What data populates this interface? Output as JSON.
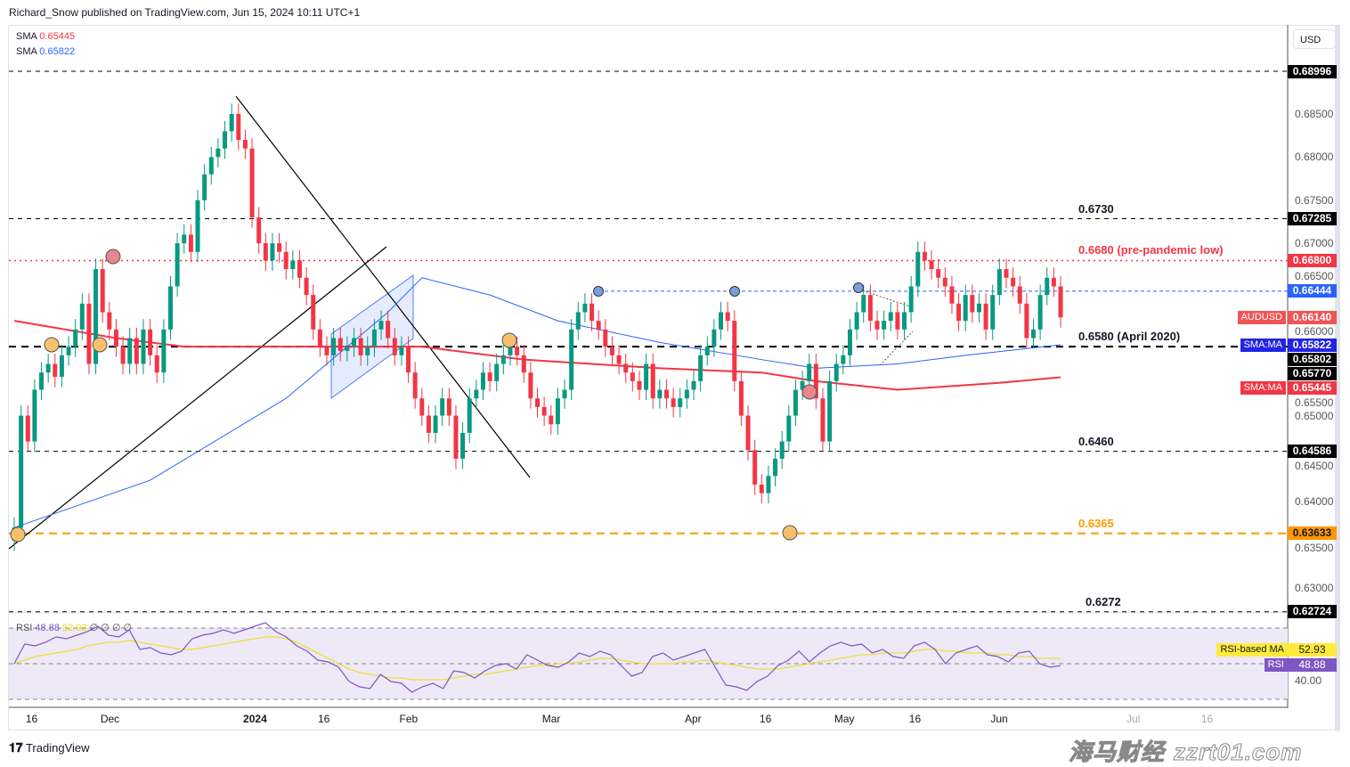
{
  "header": {
    "published": "Richard_Snow published on TradingView.com, Jun 15, 2024 10:11 UTC+1"
  },
  "legend": [
    {
      "label": "SMA",
      "value": "0.65445",
      "color": "#f23645"
    },
    {
      "label": "SMA",
      "value": "0.65822",
      "color": "#2962ff"
    }
  ],
  "currency_button": "USD",
  "footer": {
    "brand": "TradingView"
  },
  "watermark": {
    "cn": "海马财经",
    "url": "zzrt01.com"
  },
  "chart_data": {
    "type": "candlestick",
    "symbol": "AUDUSD",
    "interval": "daily",
    "start_date": "2023-11-13",
    "closes": [
      0.637,
      0.65,
      0.647,
      0.653,
      0.655,
      0.656,
      0.6545,
      0.657,
      0.658,
      0.66,
      0.663,
      0.656,
      0.667,
      0.662,
      0.66,
      0.658,
      0.656,
      0.659,
      0.656,
      0.66,
      0.657,
      0.655,
      0.66,
      0.665,
      0.67,
      0.671,
      0.669,
      0.675,
      0.678,
      0.68,
      0.681,
      0.683,
      0.685,
      0.682,
      0.681,
      0.673,
      0.67,
      0.668,
      0.67,
      0.669,
      0.667,
      0.668,
      0.666,
      0.664,
      0.66,
      0.658,
      0.657,
      0.659,
      0.6575,
      0.658,
      0.659,
      0.657,
      0.658,
      0.66,
      0.661,
      0.659,
      0.657,
      0.658,
      0.655,
      0.652,
      0.65,
      0.648,
      0.65,
      0.652,
      0.65,
      0.645,
      0.648,
      0.652,
      0.653,
      0.655,
      0.654,
      0.656,
      0.657,
      0.658,
      0.657,
      0.655,
      0.652,
      0.651,
      0.65,
      0.649,
      0.652,
      0.653,
      0.66,
      0.662,
      0.663,
      0.661,
      0.66,
      0.658,
      0.657,
      0.656,
      0.655,
      0.654,
      0.653,
      0.656,
      0.652,
      0.653,
      0.652,
      0.651,
      0.652,
      0.653,
      0.654,
      0.657,
      0.658,
      0.66,
      0.662,
      0.661,
      0.654,
      0.65,
      0.646,
      0.642,
      0.641,
      0.643,
      0.645,
      0.647,
      0.65,
      0.653,
      0.654,
      0.656,
      0.652,
      0.647,
      0.654,
      0.656,
      0.657,
      0.66,
      0.662,
      0.664,
      0.661,
      0.66,
      0.661,
      0.662,
      0.66,
      0.662,
      0.665,
      0.669,
      0.668,
      0.667,
      0.666,
      0.665,
      0.663,
      0.661,
      0.664,
      0.662,
      0.663,
      0.66,
      0.664,
      0.667,
      0.666,
      0.665,
      0.663,
      0.659,
      0.66,
      0.664,
      0.666,
      0.665,
      0.6614
    ],
    "sma_fast": {
      "color": "#2962ff",
      "points": [
        [
          0,
          0.637
        ],
        [
          20,
          0.6425
        ],
        [
          40,
          0.652
        ],
        [
          55,
          0.662
        ],
        [
          60,
          0.666
        ],
        [
          70,
          0.664
        ],
        [
          80,
          0.661
        ],
        [
          95,
          0.6585
        ],
        [
          110,
          0.6565
        ],
        [
          118,
          0.6555
        ],
        [
          130,
          0.656
        ],
        [
          140,
          0.657
        ],
        [
          154,
          0.65822
        ]
      ]
    },
    "sma_slow": {
      "color": "#f23645",
      "points": [
        [
          0,
          0.661
        ],
        [
          15,
          0.659
        ],
        [
          25,
          0.658
        ],
        [
          40,
          0.658
        ],
        [
          60,
          0.658
        ],
        [
          75,
          0.6565
        ],
        [
          95,
          0.6555
        ],
        [
          110,
          0.655
        ],
        [
          118,
          0.654
        ],
        [
          130,
          0.653
        ],
        [
          145,
          0.6538
        ],
        [
          154,
          0.65445
        ]
      ]
    },
    "y_ticks": [
      "0.68500",
      "0.68000",
      "0.67500",
      "0.67000",
      "0.66500",
      "0.66000",
      "0.65500",
      "0.65000",
      "0.64500",
      "0.64000",
      "0.63500",
      "0.63000"
    ],
    "x_ticks": [
      {
        "label": "16",
        "i": 3
      },
      {
        "label": "Dec",
        "i": 14
      },
      {
        "label": "2024",
        "i": 35
      },
      {
        "label": "16",
        "i": 46
      },
      {
        "label": "Feb",
        "i": 58
      },
      {
        "label": "Mar",
        "i": 79
      },
      {
        "label": "Apr",
        "i": 100
      },
      {
        "label": "16",
        "i": 111
      },
      {
        "label": "May",
        "i": 122
      },
      {
        "label": "16",
        "i": 133
      },
      {
        "label": "Jun",
        "i": 145
      },
      {
        "label": "Jul",
        "i": 165
      },
      {
        "label": "16",
        "i": 176
      }
    ],
    "levels": [
      {
        "price": 0.68996,
        "tag": "0.68996",
        "tag_color": "#000000",
        "style": "dashed",
        "color": "#000000",
        "label": ""
      },
      {
        "price": 0.67285,
        "tag": "0.67285",
        "tag_color": "#000000",
        "style": "dashed",
        "color": "#000000",
        "label": "0.6730"
      },
      {
        "price": 0.668,
        "tag": "0.66800",
        "tag_color": "#f23645",
        "style": "dotted",
        "color": "#f23645",
        "label": "0.6680 (pre-pandemic low)"
      },
      {
        "price": 0.66444,
        "tag": "0.66444",
        "tag_color": "#2962ff",
        "style": "dashed-thin",
        "color": "#2962ff",
        "label": ""
      },
      {
        "price": 0.658,
        "tag": "0.65802",
        "tag_color": "#000000",
        "style": "dashed-thick",
        "color": "#000000",
        "label": "0.6580 (April 2020)"
      },
      {
        "price": 0.64586,
        "tag": "0.64586",
        "tag_color": "#000000",
        "style": "dashed",
        "color": "#000000",
        "label": "0.6460"
      },
      {
        "price": 0.63633,
        "tag": "0.63633",
        "tag_color": "#ff9800",
        "style": "dashed-orange",
        "color": "#ff9800",
        "label": "0.6365"
      },
      {
        "price": 0.62724,
        "tag": "0.62724",
        "tag_color": "#000000",
        "style": "dashed",
        "color": "#000000",
        "label": "0.6272"
      }
    ],
    "price_tags": [
      {
        "name": "AUDUSD",
        "value": "0.66140",
        "price": 0.6614,
        "color": "#f05454"
      },
      {
        "name": "SMA:MA",
        "value": "0.65822",
        "price": 0.65822,
        "color": "#2323e6"
      },
      {
        "name": "",
        "value": "0.65770",
        "price": 0.6577,
        "color": "#000000"
      },
      {
        "name": "SMA:MA",
        "value": "0.65445",
        "price": 0.65445,
        "color": "#f23645"
      }
    ],
    "rsi": {
      "label": "RSI",
      "value": "48.88",
      "ma_value": "52.93",
      "ma_label": "RSI-based MA",
      "extra": "∅ ∅ ∅ ∅",
      "band": [
        30,
        70
      ],
      "mid": 50,
      "tick": "40.00",
      "color": "#7e57c2",
      "ma_color": "#ffeb3b",
      "values": [
        50,
        61,
        60,
        62,
        65,
        64,
        66,
        68,
        71,
        66,
        65,
        69,
        58,
        59,
        56,
        55,
        57,
        64,
        66,
        67,
        69,
        67,
        69,
        71,
        73,
        68,
        65,
        60,
        57,
        52,
        51,
        48,
        40,
        37,
        36,
        44,
        40,
        39,
        34,
        37,
        39,
        36,
        46,
        45,
        42,
        46,
        49,
        50,
        47,
        55,
        52,
        49,
        48,
        51,
        56,
        54,
        57,
        55,
        49,
        43,
        45,
        54,
        56,
        52,
        54,
        56,
        58,
        48,
        38,
        37,
        35,
        40,
        43,
        49,
        52,
        57,
        51,
        56,
        60,
        62,
        60,
        61,
        56,
        58,
        54,
        53,
        60,
        62,
        58,
        50,
        56,
        58,
        60,
        55,
        54,
        51,
        56,
        57,
        50,
        48,
        48.88
      ],
      "ma_values": [
        50,
        52,
        54,
        55,
        56,
        57,
        58,
        60,
        61,
        62,
        62,
        63,
        62,
        61,
        60,
        59,
        58,
        58,
        59,
        60,
        61,
        62,
        63,
        64,
        65,
        65,
        64,
        62,
        59,
        56,
        53,
        50,
        47,
        45,
        44,
        43,
        42,
        42,
        41,
        41,
        41,
        41,
        42,
        43,
        44,
        44,
        45,
        46,
        47,
        48,
        49,
        49,
        50,
        50,
        51,
        52,
        53,
        53,
        52,
        51,
        50,
        50,
        50,
        50,
        51,
        51,
        52,
        51,
        50,
        49,
        48,
        47,
        47,
        47,
        48,
        49,
        50,
        51,
        52,
        53,
        54,
        55,
        55,
        56,
        56,
        56,
        57,
        58,
        58,
        57,
        57,
        56,
        56,
        56,
        55,
        55,
        54,
        54,
        53,
        53,
        52.93
      ]
    }
  }
}
